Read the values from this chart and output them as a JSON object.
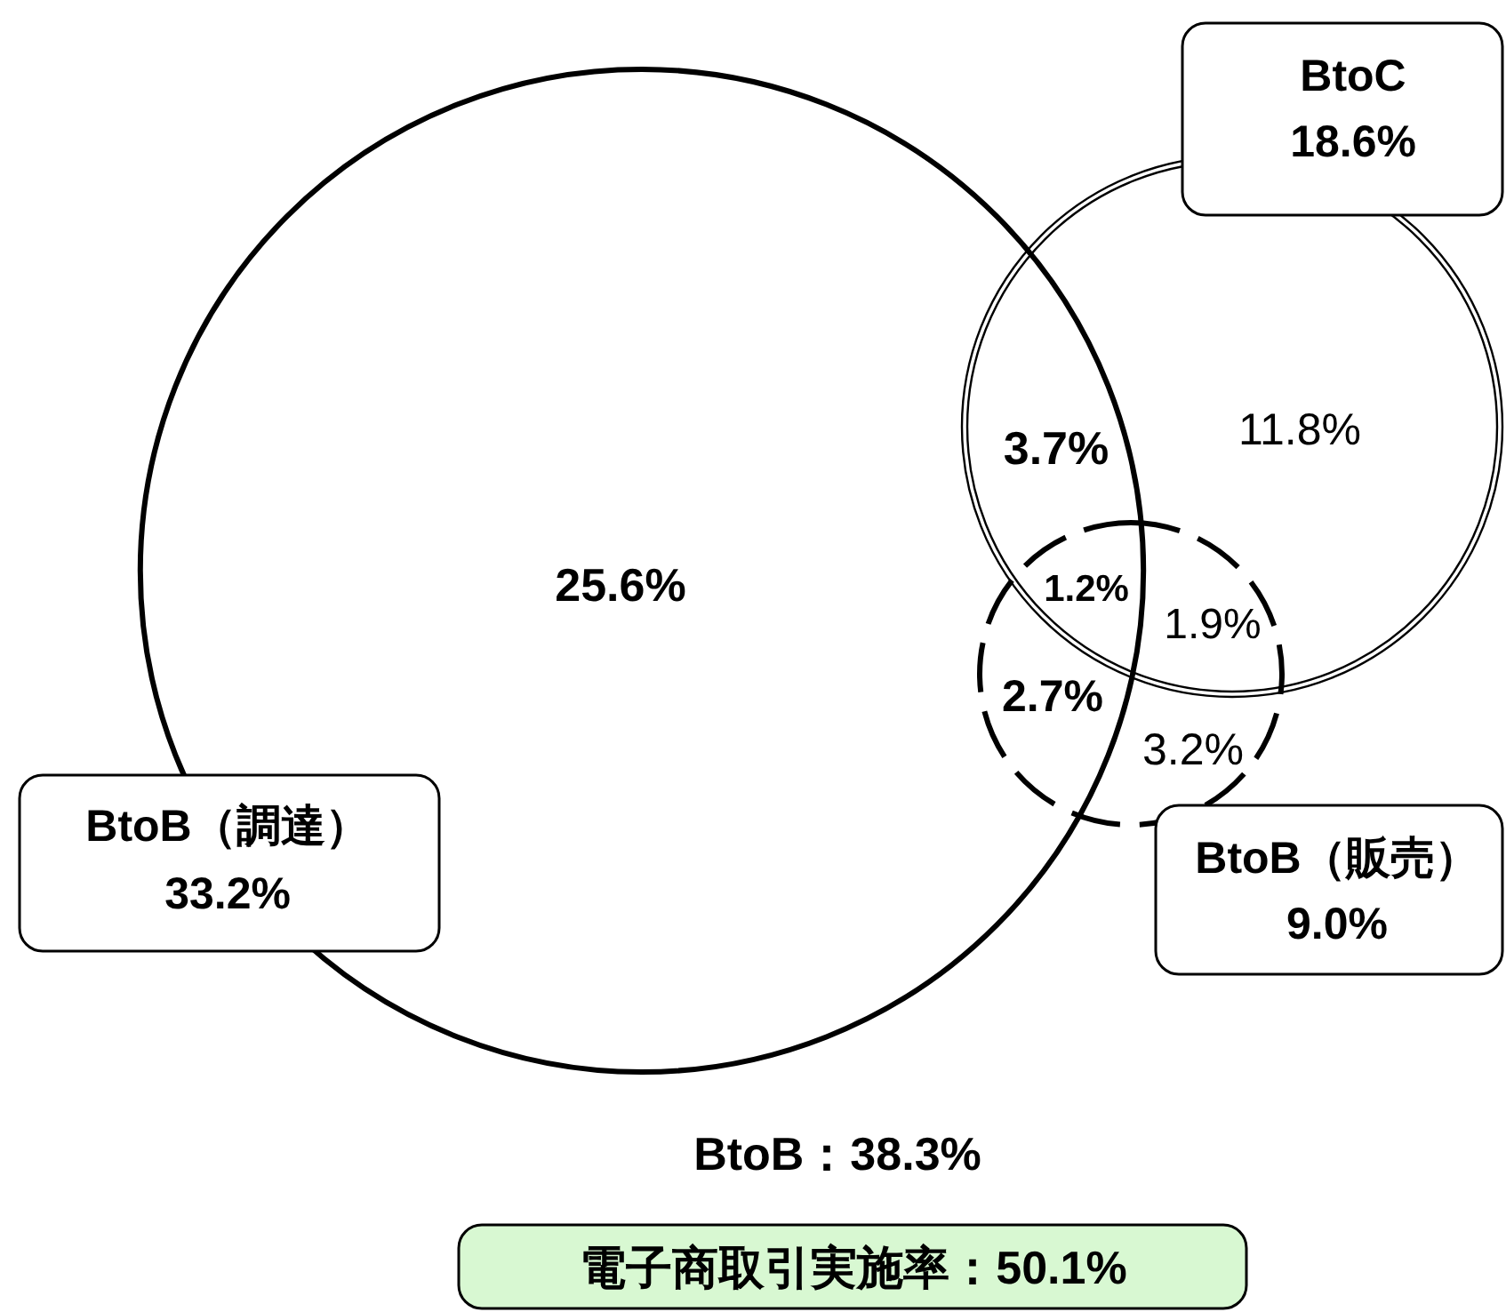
{
  "chart_data": {
    "type": "other",
    "categories": [
      "BtoB（調達）",
      "BtoC",
      "BtoB（販売）"
    ],
    "values": [
      33.2,
      18.6,
      9.0
    ],
    "value_labels": [
      "33.2%",
      "18.6%",
      "9.0%"
    ],
    "annotations": [
      "25.6%",
      "3.7%",
      "11.8%",
      "1.2%",
      "1.9%",
      "2.7%",
      "3.2%",
      "BtoB：38.3%",
      "電子商取引実施率：50.1%"
    ]
  }
}
